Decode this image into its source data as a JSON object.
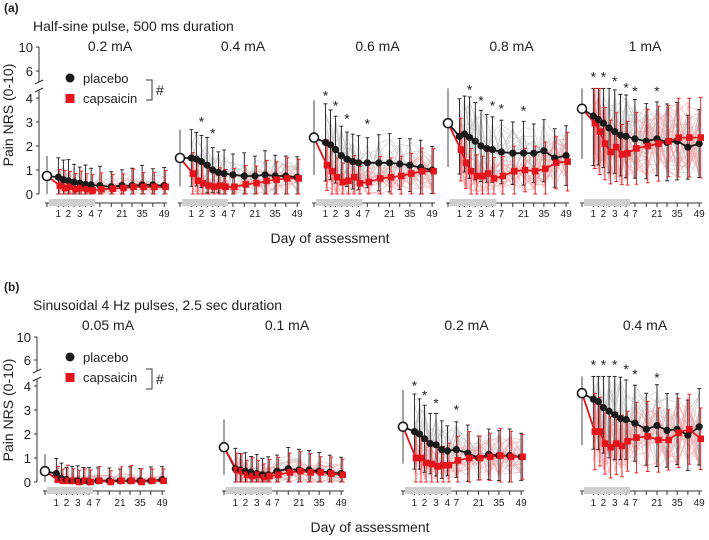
{
  "figure": {
    "y_axis_label": "Pain NRS (0-10)",
    "x_axis_label": "Day of assessment",
    "legend": {
      "placebo": "placebo",
      "capsaicin": "capsaicin",
      "group_effect_marker": "#"
    },
    "colors": {
      "placebo": "#1a1a1a",
      "capsaicin": "#e3141b",
      "placebo_individual": "#c9c9c9",
      "capsaicin_individual": "#f2a9ab",
      "treatment_bar": "#cfcfcf"
    },
    "x_tick_labels": [
      "1",
      "2",
      "3",
      "4",
      "7",
      "21",
      "35",
      "49"
    ],
    "y_tick_labels": [
      "0",
      "1",
      "2",
      "3",
      "4",
      "6",
      "10"
    ]
  },
  "chart_data": [
    {
      "panel": "(a)",
      "type": "line",
      "title": "Half-sine pulse, 500 ms duration",
      "xlabel": "Day of assessment",
      "ylabel": "Pain NRS (0-10)",
      "ylim": [
        0,
        10
      ],
      "x_categories": [
        "0",
        "1",
        "1.5",
        "2",
        "2.5",
        "3",
        "3.5",
        "4",
        "7",
        "14",
        "21",
        "28",
        "35",
        "42",
        "49"
      ],
      "subplots": [
        {
          "label": "0.2 mA",
          "baseline": 0.75,
          "placebo": [
            0.75,
            0.7,
            0.6,
            0.55,
            0.5,
            0.45,
            0.4,
            0.38,
            0.35,
            0.3,
            0.35,
            0.35,
            0.38,
            0.38,
            0.35
          ],
          "capsaicin": [
            0.75,
            0.35,
            0.25,
            0.3,
            0.2,
            0.25,
            0.2,
            0.15,
            0.2,
            0.22,
            0.25,
            0.3,
            0.3,
            0.3,
            0.3
          ],
          "significant_days": []
        },
        {
          "label": "0.4 mA",
          "baseline": 1.5,
          "placebo": [
            1.5,
            1.5,
            1.45,
            1.35,
            1.2,
            1.0,
            0.9,
            0.85,
            0.8,
            0.75,
            0.75,
            0.8,
            0.75,
            0.75,
            0.7
          ],
          "capsaicin": [
            1.5,
            0.85,
            0.55,
            0.45,
            0.35,
            0.3,
            0.35,
            0.3,
            0.3,
            0.4,
            0.45,
            0.55,
            0.6,
            0.65,
            0.65
          ],
          "significant_days": [
            "2",
            "3"
          ]
        },
        {
          "label": "0.6 mA",
          "baseline": 2.35,
          "placebo": [
            2.35,
            2.15,
            2.05,
            1.85,
            1.6,
            1.45,
            1.35,
            1.3,
            1.3,
            1.3,
            1.3,
            1.25,
            1.2,
            1.1,
            1.0
          ],
          "capsaicin": [
            2.35,
            1.2,
            0.95,
            0.7,
            0.5,
            0.55,
            0.7,
            0.45,
            0.5,
            0.65,
            0.7,
            0.75,
            0.85,
            0.95,
            0.95
          ],
          "significant_days": [
            "1",
            "2",
            "3",
            "7"
          ]
        },
        {
          "label": "0.8 mA",
          "baseline": 2.95,
          "placebo": [
            2.95,
            2.4,
            2.5,
            2.35,
            2.2,
            2.0,
            1.9,
            1.85,
            1.75,
            1.7,
            1.7,
            1.7,
            1.8,
            1.5,
            1.6
          ],
          "capsaicin": [
            2.95,
            1.85,
            1.3,
            0.95,
            0.75,
            0.75,
            0.85,
            0.65,
            0.75,
            0.95,
            1.0,
            0.95,
            1.05,
            1.3,
            1.35
          ],
          "significant_days": [
            "2",
            "3",
            "4",
            "7",
            "21"
          ]
        },
        {
          "label": "1 mA",
          "baseline": 3.55,
          "placebo": [
            3.55,
            3.25,
            3.1,
            2.95,
            2.75,
            2.6,
            2.45,
            2.4,
            2.3,
            2.2,
            2.3,
            2.15,
            2.2,
            1.95,
            2.1
          ],
          "capsaicin": [
            3.55,
            2.95,
            2.6,
            2.1,
            1.75,
            1.95,
            1.65,
            1.7,
            1.9,
            2.0,
            2.1,
            2.2,
            2.35,
            2.35,
            2.35
          ],
          "significant_days": [
            "1",
            "2",
            "3",
            "4",
            "7",
            "21"
          ]
        }
      ]
    },
    {
      "panel": "(b)",
      "type": "line",
      "title": "Sinusoidal 4 Hz pulses, 2.5 sec duration",
      "xlabel": "Day of assessment",
      "ylabel": "Pain NRS (0-10)",
      "ylim": [
        0,
        10
      ],
      "x_categories": [
        "0",
        "1",
        "1.5",
        "2",
        "2.5",
        "3",
        "3.5",
        "4",
        "7",
        "14",
        "21",
        "28",
        "35",
        "42",
        "49"
      ],
      "subplots": [
        {
          "label": "0.05 mA",
          "baseline": 0.45,
          "placebo": [
            0.45,
            0.35,
            0.15,
            0.1,
            0.05,
            0.05,
            0.05,
            0.0,
            0.05,
            0.05,
            0.05,
            0.05,
            0.05,
            0.05,
            0.1
          ],
          "capsaicin": [
            0.45,
            0.1,
            0.05,
            0.05,
            0.05,
            0.0,
            0.05,
            0.0,
            0.05,
            0.0,
            0.05,
            0.05,
            0.0,
            0.05,
            0.05
          ],
          "significant_days": []
        },
        {
          "label": "0.1 mA",
          "baseline": 1.45,
          "placebo": [
            1.45,
            0.55,
            0.5,
            0.45,
            0.4,
            0.35,
            0.3,
            0.3,
            0.45,
            0.55,
            0.5,
            0.5,
            0.45,
            0.4,
            0.35
          ],
          "capsaicin": [
            1.45,
            0.5,
            0.45,
            0.3,
            0.25,
            0.3,
            0.2,
            0.25,
            0.3,
            0.4,
            0.45,
            0.4,
            0.4,
            0.35,
            0.3
          ],
          "significant_days": []
        },
        {
          "label": "0.2 mA",
          "baseline": 2.3,
          "placebo": [
            2.3,
            2.1,
            2.0,
            1.8,
            1.6,
            1.55,
            1.35,
            1.3,
            1.35,
            1.2,
            1.0,
            1.15,
            1.1,
            1.1,
            1.05
          ],
          "capsaicin": [
            2.3,
            1.0,
            1.0,
            0.8,
            0.75,
            0.65,
            0.7,
            0.7,
            0.9,
            1.0,
            1.0,
            1.05,
            1.1,
            1.05,
            1.05
          ],
          "significant_days": [
            "1",
            "2",
            "3",
            "7"
          ]
        },
        {
          "label": "0.4 mA",
          "baseline": 3.7,
          "placebo": [
            3.7,
            3.45,
            3.35,
            3.1,
            2.95,
            2.8,
            2.65,
            2.6,
            2.45,
            2.2,
            2.35,
            2.15,
            2.2,
            1.95,
            2.3
          ],
          "capsaicin": [
            3.7,
            2.1,
            2.1,
            1.6,
            1.45,
            1.6,
            1.5,
            1.7,
            1.85,
            1.9,
            1.75,
            1.75,
            2.05,
            2.2,
            1.8
          ],
          "significant_days": [
            "1",
            "2",
            "3",
            "4",
            "7",
            "21"
          ]
        }
      ]
    }
  ]
}
